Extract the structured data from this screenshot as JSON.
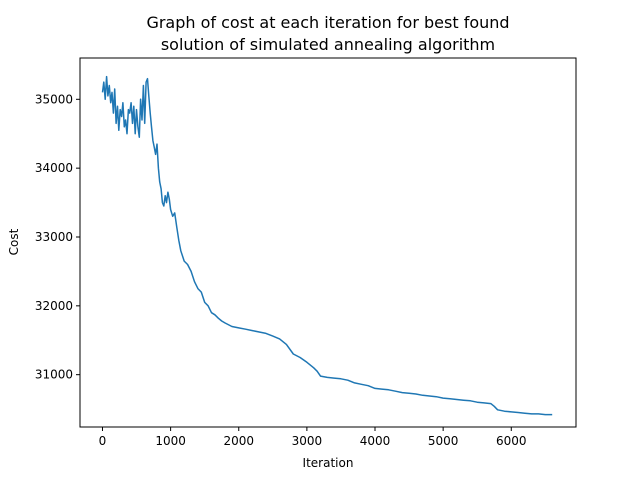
{
  "chart_data": {
    "type": "line",
    "title": "Graph of cost at each iteration for best found",
    "subtitle": "solution of simulated annealing algorithm",
    "xlabel": "Iteration",
    "ylabel": "Cost",
    "xlim": [
      -330,
      6950
    ],
    "ylim": [
      30240,
      35600
    ],
    "xticks": [
      0,
      1000,
      2000,
      3000,
      4000,
      5000,
      6000
    ],
    "xtick_labels": [
      "0",
      "1000",
      "2000",
      "3000",
      "4000",
      "5000",
      "6000"
    ],
    "yticks": [
      31000,
      32000,
      33000,
      34000,
      35000
    ],
    "ytick_labels": [
      "31000",
      "32000",
      "33000",
      "34000",
      "35000"
    ],
    "grid": false,
    "series": [
      {
        "color": "#1f77b4",
        "x": [
          0,
          20,
          40,
          60,
          80,
          100,
          120,
          140,
          160,
          180,
          200,
          220,
          240,
          260,
          280,
          300,
          320,
          340,
          360,
          380,
          400,
          420,
          440,
          460,
          480,
          500,
          520,
          540,
          560,
          580,
          600,
          620,
          640,
          660,
          680,
          700,
          720,
          740,
          760,
          780,
          800,
          820,
          840,
          860,
          880,
          900,
          920,
          940,
          960,
          980,
          1000,
          1030,
          1060,
          1090,
          1120,
          1150,
          1200,
          1250,
          1300,
          1350,
          1400,
          1450,
          1500,
          1550,
          1600,
          1650,
          1700,
          1750,
          1800,
          1900,
          2000,
          2100,
          2200,
          2300,
          2400,
          2500,
          2600,
          2700,
          2800,
          2900,
          3000,
          3100,
          3150,
          3200,
          3300,
          3400,
          3500,
          3600,
          3700,
          3800,
          3900,
          4000,
          4100,
          4200,
          4300,
          4400,
          4500,
          4600,
          4700,
          4800,
          4900,
          5000,
          5100,
          5200,
          5300,
          5400,
          5500,
          5600,
          5700,
          5750,
          5800,
          5900,
          6000,
          6100,
          6200,
          6300,
          6400,
          6500,
          6600
        ],
        "y": [
          35100,
          35250,
          35000,
          35330,
          35050,
          35200,
          34950,
          35100,
          34800,
          35150,
          34650,
          34900,
          34550,
          34850,
          34750,
          34950,
          34600,
          34700,
          34500,
          34850,
          34800,
          34950,
          34650,
          34900,
          34500,
          34850,
          34600,
          34450,
          35000,
          34700,
          35200,
          34650,
          35250,
          35300,
          35050,
          34800,
          34600,
          34400,
          34300,
          34200,
          34350,
          34000,
          33800,
          33700,
          33500,
          33450,
          33600,
          33500,
          33650,
          33550,
          33400,
          33300,
          33350,
          33150,
          32950,
          32800,
          32650,
          32600,
          32500,
          32350,
          32250,
          32200,
          32050,
          32000,
          31900,
          31870,
          31820,
          31780,
          31750,
          31700,
          31680,
          31660,
          31640,
          31620,
          31600,
          31560,
          31520,
          31440,
          31300,
          31250,
          31180,
          31100,
          31050,
          30980,
          30960,
          30950,
          30940,
          30920,
          30880,
          30860,
          30840,
          30800,
          30790,
          30780,
          30760,
          30740,
          30730,
          30720,
          30700,
          30690,
          30680,
          30660,
          30650,
          30640,
          30630,
          30620,
          30600,
          30590,
          30580,
          30540,
          30490,
          30470,
          30460,
          30450,
          30440,
          30430,
          30430,
          30420,
          30420
        ]
      }
    ]
  }
}
